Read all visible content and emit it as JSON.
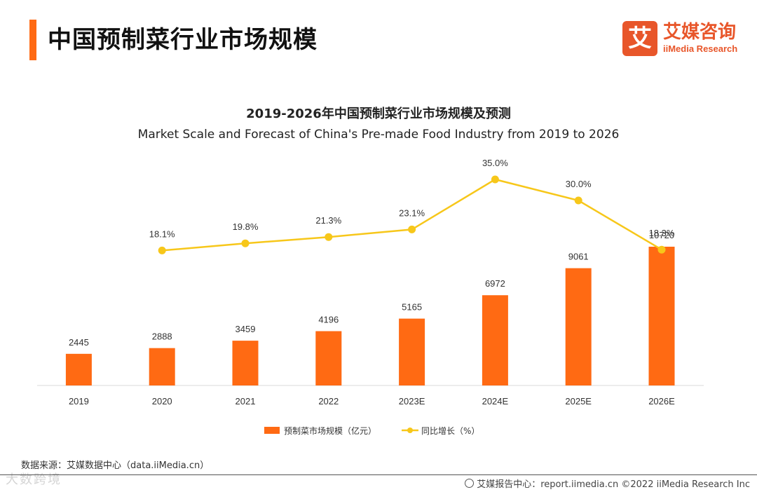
{
  "header": {
    "page_title": "中国预制菜行业市场规模",
    "logo_cn": "艾媒咨询",
    "logo_en": "iiMedia Research",
    "logo_glyph": "艾"
  },
  "colors": {
    "bar": "#ff6a13",
    "line": "#f7c71a",
    "accent": "#ff6a13"
  },
  "chart_data": {
    "type": "bar",
    "title": "2019-2026年中国预制菜行业市场规模及预测",
    "subtitle": "Market Scale and Forecast of China's Pre-made Food Industry from 2019 to 2026",
    "categories": [
      "2019",
      "2020",
      "2021",
      "2022",
      "2023E",
      "2024E",
      "2025E",
      "2026E"
    ],
    "series": [
      {
        "name": "预制菜市场规模（亿元）",
        "type": "bar",
        "values": [
          2445,
          2888,
          3459,
          4196,
          5165,
          6972,
          9061,
          10720
        ],
        "labels": [
          "2445",
          "2888",
          "3459",
          "4196",
          "5165",
          "6972",
          "9061",
          "10720"
        ]
      },
      {
        "name": "同比增长（%）",
        "type": "line",
        "values": [
          null,
          18.1,
          19.8,
          21.3,
          23.1,
          35.0,
          30.0,
          18.3
        ],
        "labels": [
          "",
          "18.1%",
          "19.8%",
          "21.3%",
          "23.1%",
          "35.0%",
          "30.0%",
          "18.3%"
        ]
      }
    ],
    "grid": false,
    "legend_position": "bottom"
  },
  "source": "数据来源：艾媒数据中心（data.iiMedia.cn）",
  "watermark": "大数跨境",
  "footer": "艾媒报告中心：report.iimedia.cn   ©2022  iiMedia Research  Inc"
}
